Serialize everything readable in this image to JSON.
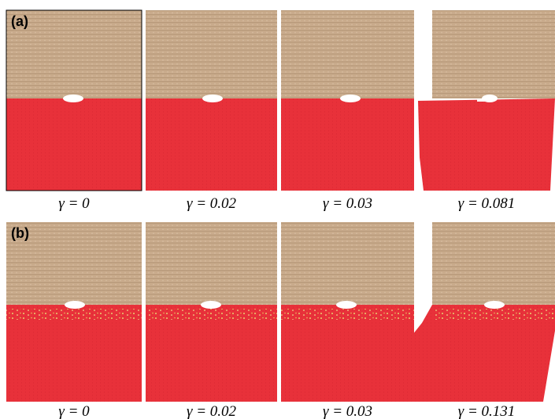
{
  "panels": [
    {
      "label": "(a)",
      "snapshots": [
        {
          "caption": "γ = 0"
        },
        {
          "caption": "γ = 0.02"
        },
        {
          "caption": "γ = 0.03"
        },
        {
          "caption": "γ = 0.081"
        }
      ]
    },
    {
      "label": "(b)",
      "snapshots": [
        {
          "caption": "γ = 0"
        },
        {
          "caption": "γ = 0.02"
        },
        {
          "caption": "γ = 0.03"
        },
        {
          "caption": "γ = 0.131"
        }
      ]
    }
  ]
}
